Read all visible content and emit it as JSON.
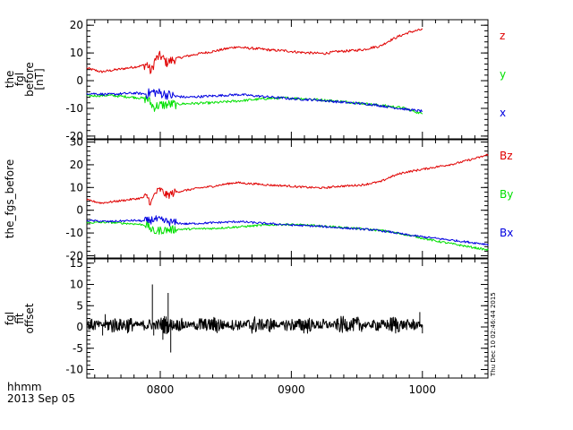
{
  "chart_data": [
    {
      "type": "line",
      "ylabel_lines": [
        "the",
        "fgl",
        "before",
        "[nT]"
      ],
      "ylim": [
        -21,
        22
      ],
      "yticks": [
        -20,
        -10,
        0,
        10,
        20
      ],
      "xlim": [
        744,
        1050
      ],
      "series": [
        {
          "name": "z",
          "color": "#e00000",
          "x": [
            744,
            755,
            770,
            785,
            790,
            793,
            796,
            800,
            805,
            812,
            820,
            830,
            840,
            850,
            858,
            865,
            875,
            885,
            895,
            905,
            915,
            925,
            935,
            945,
            955,
            962,
            968,
            975,
            982,
            990,
            1000
          ],
          "y": [
            4.5,
            3.2,
            4.2,
            5.3,
            6.0,
            3.0,
            7.5,
            9.0,
            6.5,
            8.0,
            8.8,
            9.8,
            10.5,
            11.5,
            12.2,
            11.8,
            11.5,
            11.0,
            10.8,
            10.3,
            10.0,
            9.8,
            10.5,
            10.8,
            11.2,
            12.0,
            12.5,
            14.5,
            16.0,
            17.5,
            18.5
          ]
        },
        {
          "name": "y",
          "color": "#00e000",
          "x": [
            744,
            760,
            780,
            790,
            795,
            800,
            810,
            820,
            840,
            860,
            880,
            895,
            910,
            930,
            950,
            970,
            985,
            1000
          ],
          "y": [
            -5.5,
            -5.3,
            -6.0,
            -6.5,
            -9.5,
            -8.8,
            -8.5,
            -8.3,
            -8.0,
            -7.3,
            -6.5,
            -6.2,
            -6.5,
            -7.2,
            -8.0,
            -9.0,
            -9.8,
            -12.0
          ]
        },
        {
          "name": "x",
          "color": "#0000e0",
          "x": [
            744,
            760,
            780,
            790,
            795,
            800,
            810,
            820,
            840,
            860,
            880,
            900,
            920,
            940,
            960,
            975,
            990,
            1000
          ],
          "y": [
            -4.5,
            -5.0,
            -4.5,
            -4.8,
            -4.0,
            -4.5,
            -5.5,
            -6.0,
            -5.5,
            -5.0,
            -5.8,
            -6.5,
            -7.0,
            -7.8,
            -8.5,
            -9.5,
            -10.5,
            -11.0
          ]
        }
      ]
    },
    {
      "type": "line",
      "ylabel_lines": [
        "the_fgs_before"
      ],
      "ylim": [
        -21,
        31
      ],
      "yticks": [
        -20,
        -10,
        0,
        10,
        20,
        30
      ],
      "xlim": [
        744,
        1050
      ],
      "series": [
        {
          "name": "Bz",
          "color": "#e00000",
          "x": [
            744,
            755,
            770,
            785,
            790,
            793,
            796,
            800,
            805,
            812,
            820,
            830,
            840,
            850,
            858,
            865,
            875,
            885,
            895,
            905,
            915,
            925,
            935,
            945,
            955,
            962,
            968,
            975,
            985,
            995,
            1005,
            1015,
            1025,
            1035,
            1045,
            1050
          ],
          "y": [
            4.5,
            3.2,
            4.2,
            5.3,
            6.0,
            3.0,
            7.5,
            9.0,
            6.5,
            8.0,
            8.8,
            9.8,
            10.5,
            11.5,
            12.2,
            11.8,
            11.5,
            11.0,
            10.8,
            10.3,
            10.0,
            9.8,
            10.5,
            10.8,
            11.2,
            12.0,
            12.5,
            14.5,
            16.5,
            17.5,
            18.5,
            19.5,
            20.5,
            22.0,
            23.5,
            24.5
          ]
        },
        {
          "name": "By",
          "color": "#00e000",
          "x": [
            744,
            760,
            780,
            790,
            795,
            800,
            810,
            820,
            840,
            860,
            880,
            895,
            910,
            930,
            950,
            970,
            990,
            1010,
            1030,
            1050
          ],
          "y": [
            -5.5,
            -5.3,
            -6.0,
            -6.5,
            -9.5,
            -8.8,
            -8.5,
            -8.3,
            -8.0,
            -7.3,
            -6.5,
            -6.2,
            -6.5,
            -7.2,
            -8.0,
            -9.0,
            -11.0,
            -13.5,
            -15.5,
            -17.5
          ]
        },
        {
          "name": "Bx",
          "color": "#0000e0",
          "x": [
            744,
            760,
            780,
            790,
            795,
            800,
            810,
            820,
            840,
            860,
            880,
            900,
            920,
            940,
            960,
            975,
            990,
            1005,
            1020,
            1035,
            1050
          ],
          "y": [
            -4.5,
            -5.0,
            -4.5,
            -4.8,
            -4.0,
            -4.5,
            -5.5,
            -6.0,
            -5.5,
            -5.0,
            -5.8,
            -6.5,
            -7.0,
            -7.8,
            -8.5,
            -9.5,
            -11.0,
            -12.0,
            -13.0,
            -14.0,
            -15.0
          ]
        }
      ]
    },
    {
      "type": "line",
      "ylabel_lines": [
        "fgl",
        "fit",
        "offset"
      ],
      "ylim": [
        -12,
        16
      ],
      "yticks": [
        -10,
        -5,
        0,
        5,
        10,
        15
      ],
      "xlim": [
        744,
        1050
      ],
      "series": [
        {
          "name": "",
          "color": "#000000",
          "style": "dense-noise",
          "x_range": [
            744,
            1000
          ],
          "baseline": 0.5,
          "amplitude": 1.4,
          "spikes": [
            {
              "x": 758,
              "y": 3.0
            },
            {
              "x": 756,
              "y": -2.0
            },
            {
              "x": 794,
              "y": 10.0
            },
            {
              "x": 795,
              "y": -2.0
            },
            {
              "x": 806,
              "y": 8.0
            },
            {
              "x": 808,
              "y": -6.0
            },
            {
              "x": 802,
              "y": -3.0
            },
            {
              "x": 998,
              "y": 3.5
            },
            {
              "x": 1000,
              "y": -1.5
            }
          ]
        }
      ]
    }
  ],
  "x_axis": {
    "tick_labels": [
      "0800",
      "0900",
      "1000"
    ],
    "tick_values": [
      800,
      900,
      1000
    ]
  },
  "footer": {
    "time_label": "hhmm",
    "date_label": "2013 Sep 05"
  },
  "timestamp": "Thu Dec 10 02:46:44 2015"
}
